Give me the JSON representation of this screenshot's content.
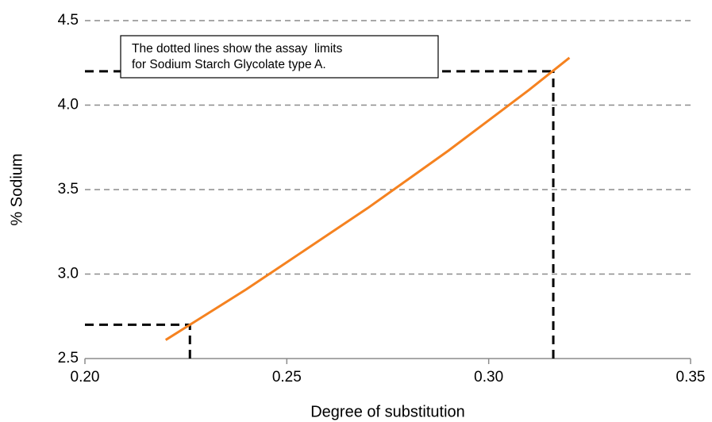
{
  "chart_data": {
    "type": "line",
    "xlabel": "Degree of substitution",
    "ylabel": "% Sodium",
    "x": [
      0.22,
      0.23,
      0.24,
      0.25,
      0.26,
      0.27,
      0.28,
      0.29,
      0.3,
      0.31,
      0.32
    ],
    "values": [
      2.61,
      2.76,
      2.91,
      3.07,
      3.23,
      3.39,
      3.56,
      3.73,
      3.91,
      4.09,
      4.28
    ],
    "color": "#f58220",
    "xlim": [
      0.2,
      0.35
    ],
    "xticks": [
      {
        "value": 0.2,
        "label": "0.20"
      },
      0.25,
      {
        "value": 0.3,
        "label": "0.30"
      },
      0.35
    ],
    "ylim": [
      2.5,
      4.5
    ],
    "yticks": [
      2.5,
      {
        "value": 3,
        "label": "3.0"
      },
      3.5,
      {
        "value": 4,
        "label": "4.0"
      },
      4.5
    ],
    "grid": true,
    "limits": [
      {
        "x": 0.226,
        "y": 2.7
      },
      {
        "x": 0.316,
        "y": 4.2
      }
    ],
    "annotation": [
      "The dotted lines show the assay  limits",
      "for Sodium Starch Glycolate type A."
    ]
  }
}
